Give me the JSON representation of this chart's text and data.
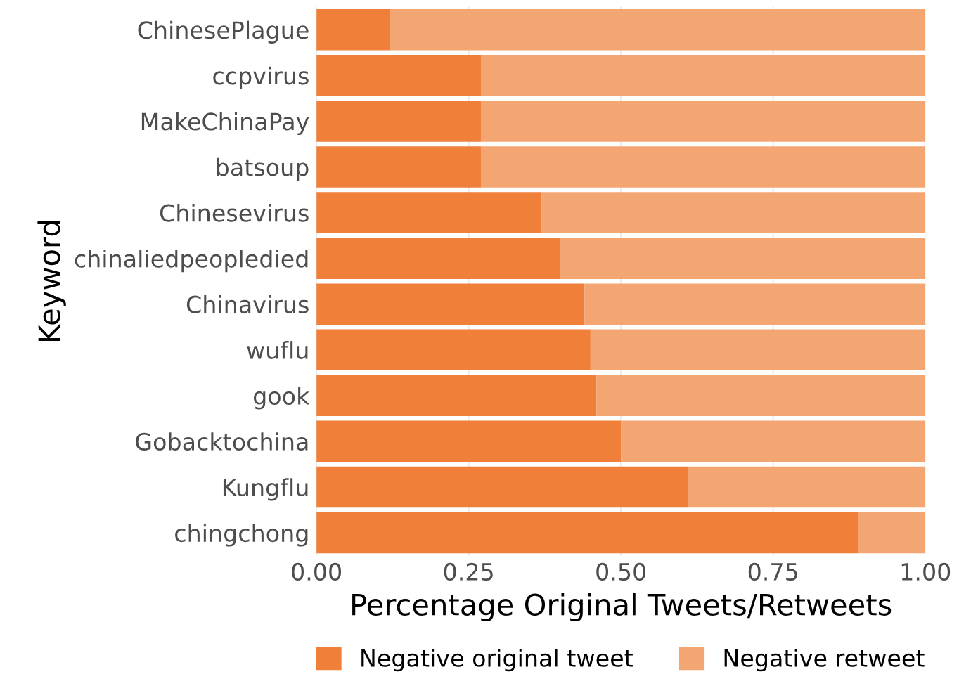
{
  "chart_data": {
    "type": "bar",
    "orientation": "horizontal",
    "stacked": true,
    "xlabel": "Percentage Original Tweets/Retweets",
    "ylabel": "Keyword",
    "categories": [
      "ChinesePlague",
      "ccpvirus",
      "MakeChinaPay",
      "batsoup",
      "Chinesevirus",
      "chinaliedpeopledied",
      "Chinavirus",
      "wuflu",
      "gook",
      "Gobacktochina",
      "Kungflu",
      "chingchong"
    ],
    "series": [
      {
        "name": "Negative original tweet",
        "color": "#f07f3a",
        "values": [
          0.12,
          0.27,
          0.27,
          0.27,
          0.37,
          0.4,
          0.44,
          0.45,
          0.46,
          0.5,
          0.61,
          0.89
        ]
      },
      {
        "name": "Negative retweet",
        "color": "#f4a672",
        "values": [
          0.88,
          0.73,
          0.73,
          0.73,
          0.63,
          0.6,
          0.56,
          0.55,
          0.54,
          0.5,
          0.39,
          0.11
        ]
      }
    ],
    "xlim": [
      0,
      1
    ],
    "xticks": [
      {
        "value": 0,
        "label": "0.00"
      },
      {
        "value": 0.25,
        "label": "0.25"
      },
      {
        "value": 0.5,
        "label": "0.50"
      },
      {
        "value": 0.75,
        "label": "0.75"
      },
      {
        "value": 1,
        "label": "1.00"
      }
    ],
    "grid": "x",
    "legend": "bottom"
  }
}
